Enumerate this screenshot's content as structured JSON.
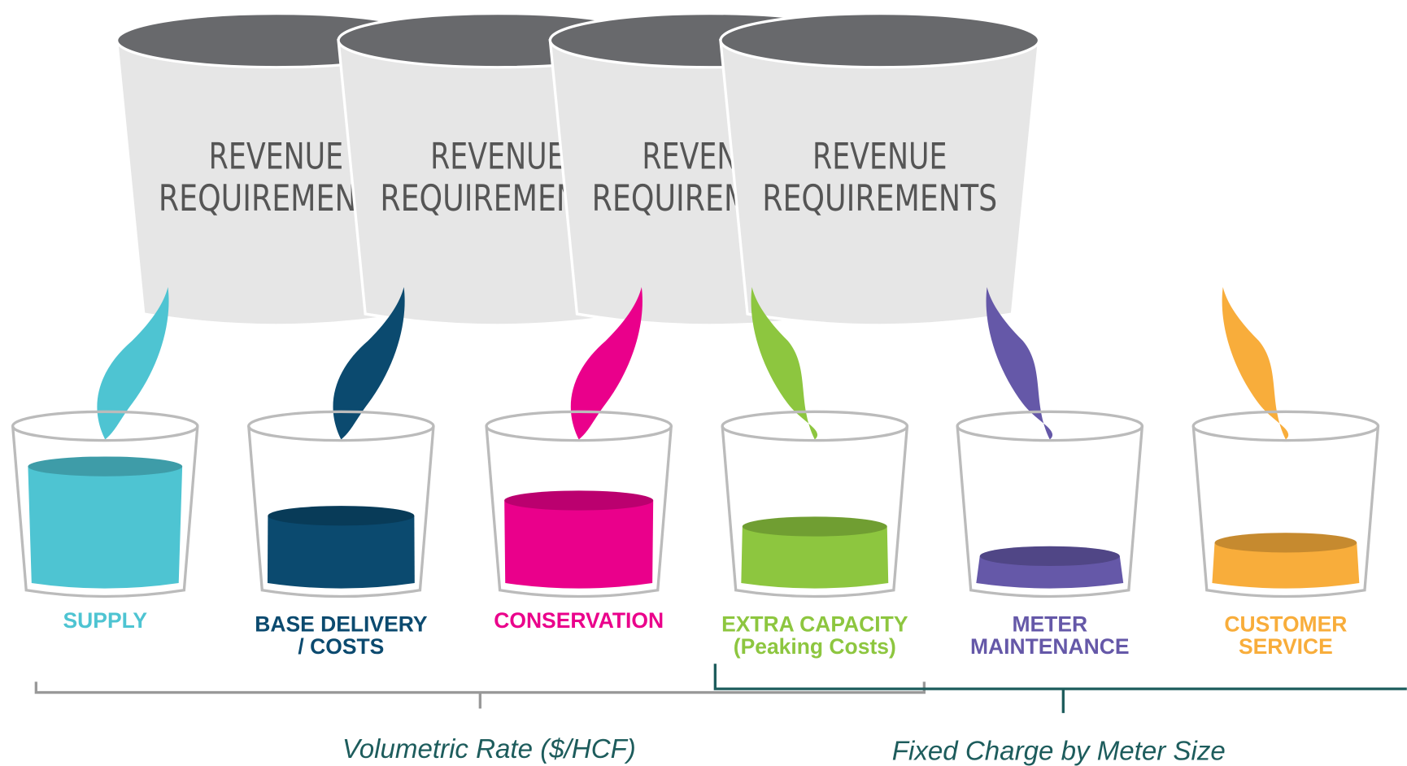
{
  "buckets": [
    {
      "line1": "REVENUE",
      "line2": "REQUIREMENTS"
    },
    {
      "line1": "REVENUE",
      "line2": "REQUIREMENTS"
    },
    {
      "line1": "REVENUE",
      "line2": "REQUIREMENTS"
    },
    {
      "line1": "REVENUE",
      "line2": "REQUIREMENTS"
    }
  ],
  "cups": [
    {
      "lines": [
        "SUPPLY"
      ],
      "color": "#4ec4d2"
    },
    {
      "lines": [
        "BASE DELIVERY",
        "/ COSTS"
      ],
      "color": "#0b4a6f"
    },
    {
      "lines": [
        "CONSERVATION"
      ],
      "color": "#ea008b"
    },
    {
      "lines": [
        "EXTRA CAPACITY",
        "(Peaking Costs)"
      ],
      "color": "#8dc63f"
    },
    {
      "lines": [
        "METER",
        "MAINTENANCE"
      ],
      "color": "#6558a8"
    },
    {
      "lines": [
        "CUSTOMER",
        "SERVICE"
      ],
      "color": "#f8ad3b"
    }
  ],
  "brackets": {
    "left": "Volumetric Rate ($/HCF)",
    "right": "Fixed Charge by Meter Size"
  }
}
